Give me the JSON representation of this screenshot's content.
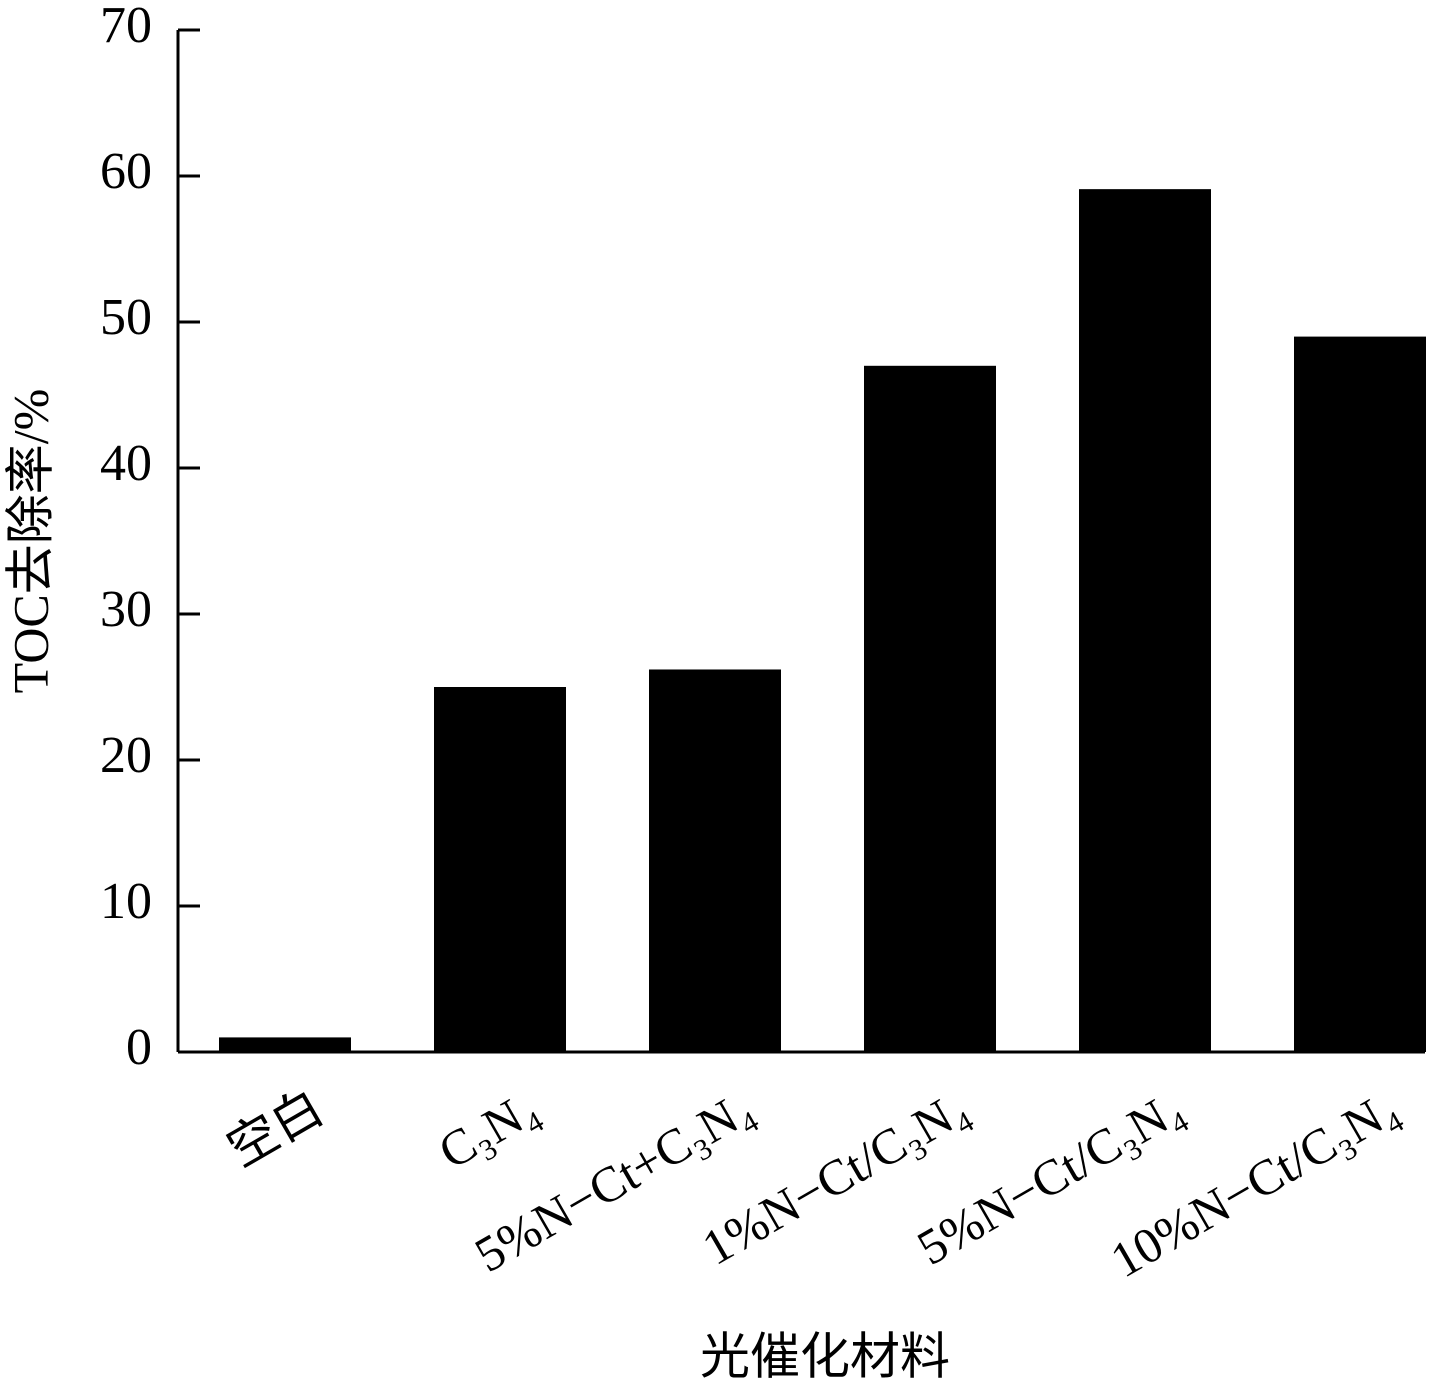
{
  "chart_data": {
    "type": "bar",
    "y_label": "TOC去除率/%",
    "x_label": "光催化材料",
    "categories": [
      "空白",
      "C₃N₄",
      "5%N−Ct+C₃N₄",
      "1%N−Ct/C₃N₄",
      "5%N−Ct/C₃N₄",
      "10%N−Ct/C₃N₄"
    ],
    "values": [
      1,
      25,
      26.2,
      47,
      59.1,
      49
    ],
    "color": "#000000",
    "ylim": [
      0,
      70
    ],
    "yticks": [
      0,
      10,
      20,
      30,
      40,
      50,
      60,
      70
    ],
    "grid": false
  }
}
